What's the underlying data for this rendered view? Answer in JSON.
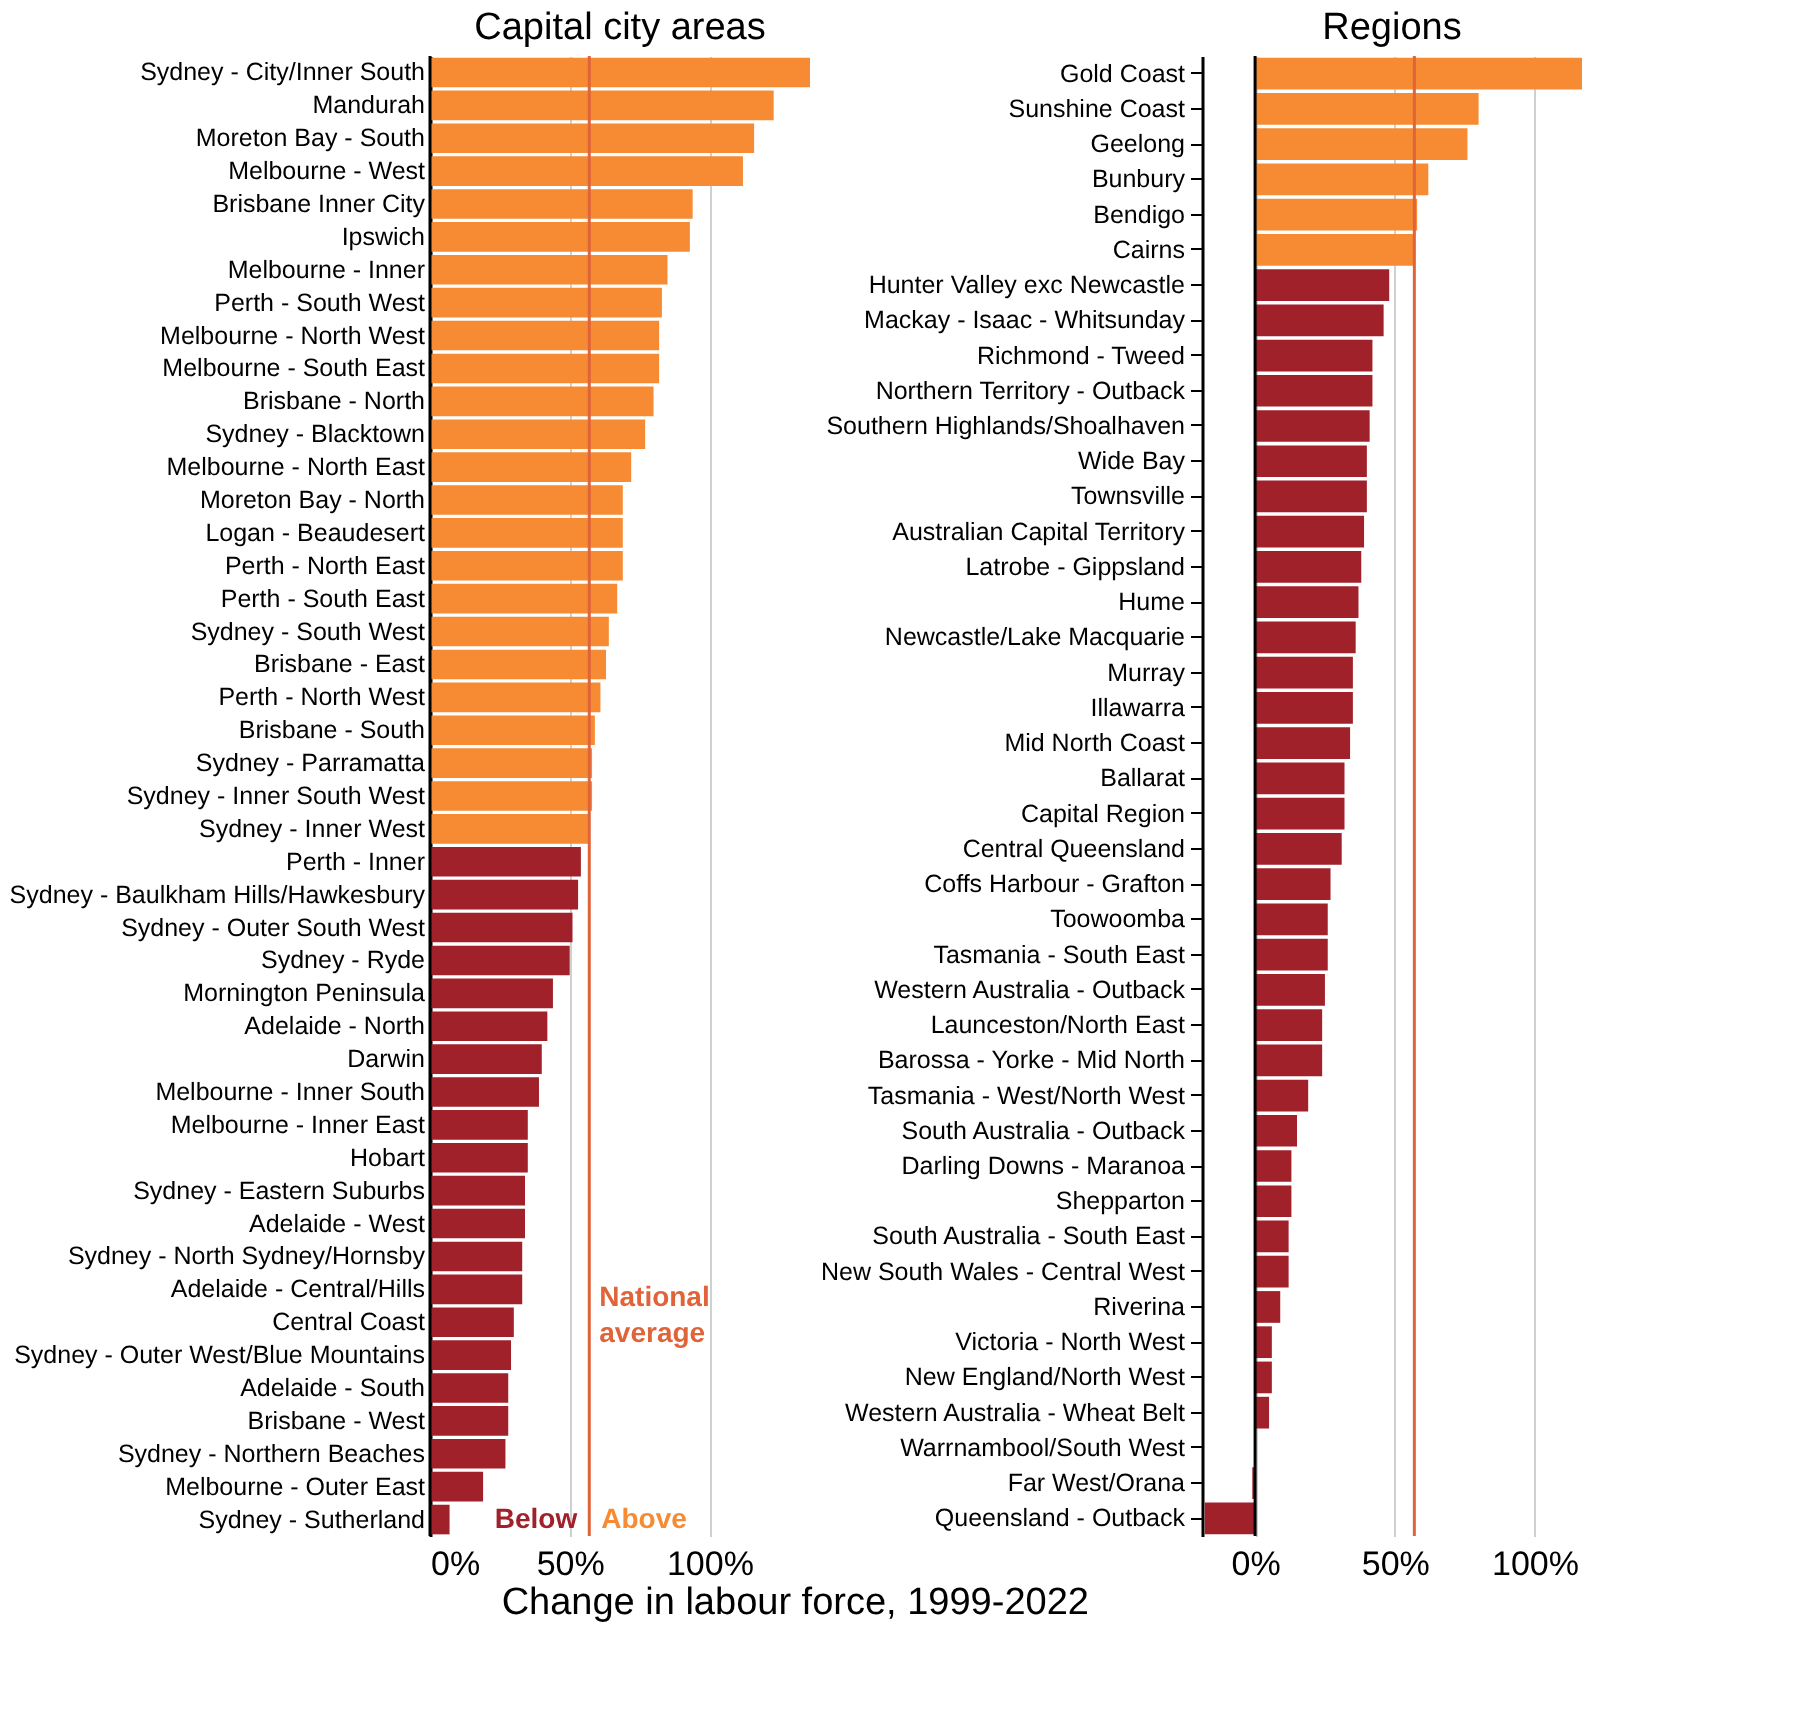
{
  "chart_data": [
    {
      "type": "bar",
      "orientation": "horizontal",
      "title": "Capital city areas",
      "categories": [
        "Sydney - City/Inner South",
        "Mandurah",
        "Moreton Bay - South",
        "Melbourne - West",
        "Brisbane Inner City",
        "Ipswich",
        "Melbourne - Inner",
        "Perth - South West",
        "Melbourne - North West",
        "Melbourne - South East",
        "Brisbane - North",
        "Sydney - Blacktown",
        "Melbourne - North East",
        "Moreton Bay - North",
        "Logan - Beaudesert",
        "Perth - North East",
        "Perth - South East",
        "Sydney - South West",
        "Brisbane - East",
        "Perth - North West",
        "Brisbane - South",
        "Sydney - Parramatta",
        "Sydney - Inner South West",
        "Sydney - Inner West",
        "Perth - Inner",
        "Sydney - Baulkham Hills/Hawkesbury",
        "Sydney - Outer South West",
        "Sydney - Ryde",
        "Mornington Peninsula",
        "Adelaide - North",
        "Darwin",
        "Melbourne - Inner South",
        "Melbourne - Inner East",
        "Hobart",
        "Sydney - Eastern Suburbs",
        "Adelaide - West",
        "Sydney - North Sydney/Hornsby",
        "Adelaide - Central/Hills",
        "Central Coast",
        "Sydney - Outer West/Blue Mountains",
        "Adelaide - South",
        "Brisbane - West",
        "Sydney - Northern Beaches",
        "Melbourne - Outer East",
        "Sydney - Sutherland"
      ],
      "values": [
        136,
        123,
        116,
        112,
        94,
        93,
        85,
        83,
        82,
        82,
        80,
        77,
        72,
        69,
        69,
        69,
        67,
        64,
        63,
        61,
        59,
        58,
        58,
        57,
        54,
        53,
        51,
        50,
        44,
        42,
        40,
        39,
        35,
        35,
        34,
        34,
        33,
        33,
        30,
        29,
        28,
        28,
        27,
        19,
        7
      ],
      "colors": [
        "#f68b33",
        "#f68b33",
        "#f68b33",
        "#f68b33",
        "#f68b33",
        "#f68b33",
        "#f68b33",
        "#f68b33",
        "#f68b33",
        "#f68b33",
        "#f68b33",
        "#f68b33",
        "#f68b33",
        "#f68b33",
        "#f68b33",
        "#f68b33",
        "#f68b33",
        "#f68b33",
        "#f68b33",
        "#f68b33",
        "#f68b33",
        "#f68b33",
        "#f68b33",
        "#f68b33",
        "#a0212a",
        "#a0212a",
        "#a0212a",
        "#a0212a",
        "#a0212a",
        "#a0212a",
        "#a0212a",
        "#a0212a",
        "#a0212a",
        "#a0212a",
        "#a0212a",
        "#a0212a",
        "#a0212a",
        "#a0212a",
        "#a0212a",
        "#a0212a",
        "#a0212a",
        "#a0212a",
        "#a0212a",
        "#a0212a",
        "#a0212a"
      ],
      "xlim": [
        0,
        136
      ],
      "xticks": [
        {
          "value": 0,
          "label": "0%"
        },
        {
          "value": 50,
          "label": "50%"
        },
        {
          "value": 100,
          "label": "100%"
        }
      ],
      "grid": "x",
      "ref_lines": [
        {
          "axis": "x",
          "value": 57,
          "label": "National average",
          "color": "#e0643a"
        }
      ],
      "annotations": [
        "Below",
        "Above"
      ]
    },
    {
      "type": "bar",
      "orientation": "horizontal",
      "title": "Regions",
      "xlabel": "Change in labour force, 1999-2022",
      "categories": [
        "Gold Coast",
        "Sunshine Coast",
        "Geelong",
        "Bunbury",
        "Bendigo",
        "Cairns",
        "Hunter Valley exc Newcastle",
        "Mackay - Isaac - Whitsunday",
        "Richmond - Tweed",
        "Northern Territory - Outback",
        "Southern Highlands/Shoalhaven",
        "Wide Bay",
        "Townsville",
        "Australian Capital Territory",
        "Latrobe - Gippsland",
        "Hume",
        "Newcastle/Lake Macquarie",
        "Murray",
        "Illawarra",
        "Mid North Coast",
        "Ballarat",
        "Capital Region",
        "Central Queensland",
        "Coffs Harbour - Grafton",
        "Toowoomba",
        "Tasmania - South East",
        "Western Australia - Outback",
        "Launceston/North East",
        "Barossa - Yorke - Mid North",
        "Tasmania - West/North West",
        "South Australia - Outback",
        "Darling Downs - Maranoa",
        "Shepparton",
        "South Australia - South East",
        "New South Wales - Central West",
        "Riverina",
        "Victoria - North West",
        "New England/North West",
        "Western Australia - Wheat Belt",
        "Warrnambool/South West",
        "Far West/Orana",
        "Queensland - Outback"
      ],
      "values": [
        117,
        80,
        76,
        62,
        58,
        57,
        48,
        46,
        42,
        42,
        41,
        40,
        40,
        39,
        38,
        37,
        36,
        35,
        35,
        34,
        32,
        32,
        31,
        27,
        26,
        26,
        25,
        24,
        24,
        19,
        15,
        13,
        13,
        12,
        12,
        9,
        6,
        6,
        5,
        null,
        -1,
        -18
      ],
      "colors": [
        "#f68b33",
        "#f68b33",
        "#f68b33",
        "#f68b33",
        "#f68b33",
        "#f68b33",
        "#a0212a",
        "#a0212a",
        "#a0212a",
        "#a0212a",
        "#a0212a",
        "#a0212a",
        "#a0212a",
        "#a0212a",
        "#a0212a",
        "#a0212a",
        "#a0212a",
        "#a0212a",
        "#a0212a",
        "#a0212a",
        "#a0212a",
        "#a0212a",
        "#a0212a",
        "#a0212a",
        "#a0212a",
        "#a0212a",
        "#a0212a",
        "#a0212a",
        "#a0212a",
        "#a0212a",
        "#a0212a",
        "#a0212a",
        "#a0212a",
        "#a0212a",
        "#a0212a",
        "#a0212a",
        "#a0212a",
        "#a0212a",
        "#a0212a",
        "#a0212a",
        "#a0212a",
        "#a0212a"
      ],
      "xlim": [
        -19,
        117
      ],
      "xticks": [
        {
          "value": 0,
          "label": "0%"
        },
        {
          "value": 50,
          "label": "50%"
        },
        {
          "value": 100,
          "label": "100%"
        }
      ],
      "grid": "x",
      "ref_lines": [
        {
          "axis": "x",
          "value": 57,
          "color": "#e0643a"
        }
      ]
    }
  ]
}
